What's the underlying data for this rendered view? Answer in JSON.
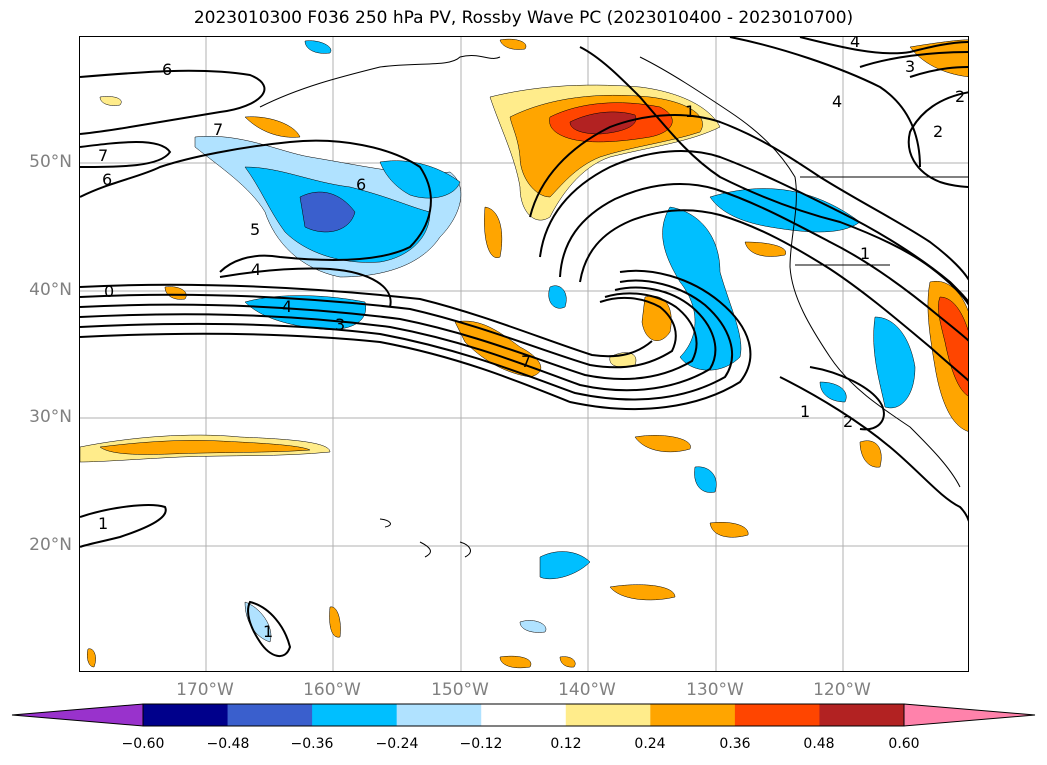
{
  "title": "2023010300 F036 250 hPa PV, Rossby Wave PC (2023010400 - 2023010700)",
  "latitudes": [
    "50°N",
    "40°N",
    "30°N",
    "20°N"
  ],
  "longitudes": [
    "170°W",
    "160°W",
    "150°W",
    "140°W",
    "130°W",
    "120°W"
  ],
  "colorbar": {
    "ticks": [
      "−0.60",
      "−0.48",
      "−0.36",
      "−0.24",
      "−0.12",
      "0.12",
      "0.24",
      "0.36",
      "0.48",
      "0.60"
    ],
    "colors": [
      "#9932cc",
      "#00008b",
      "#3a5fcd",
      "#00bfff",
      "#b0e2ff",
      "#ffffff",
      "#ffec8b",
      "#ffa500",
      "#ff4500",
      "#b22222",
      "#ff82ab"
    ]
  },
  "contour_labels": [
    "6",
    "7",
    "7",
    "6",
    "6",
    "5",
    "4",
    "4",
    "3",
    "0",
    "1",
    "2",
    "1",
    "7",
    "4",
    "3",
    "2",
    "1",
    "4",
    "1",
    "1",
    "2"
  ]
}
